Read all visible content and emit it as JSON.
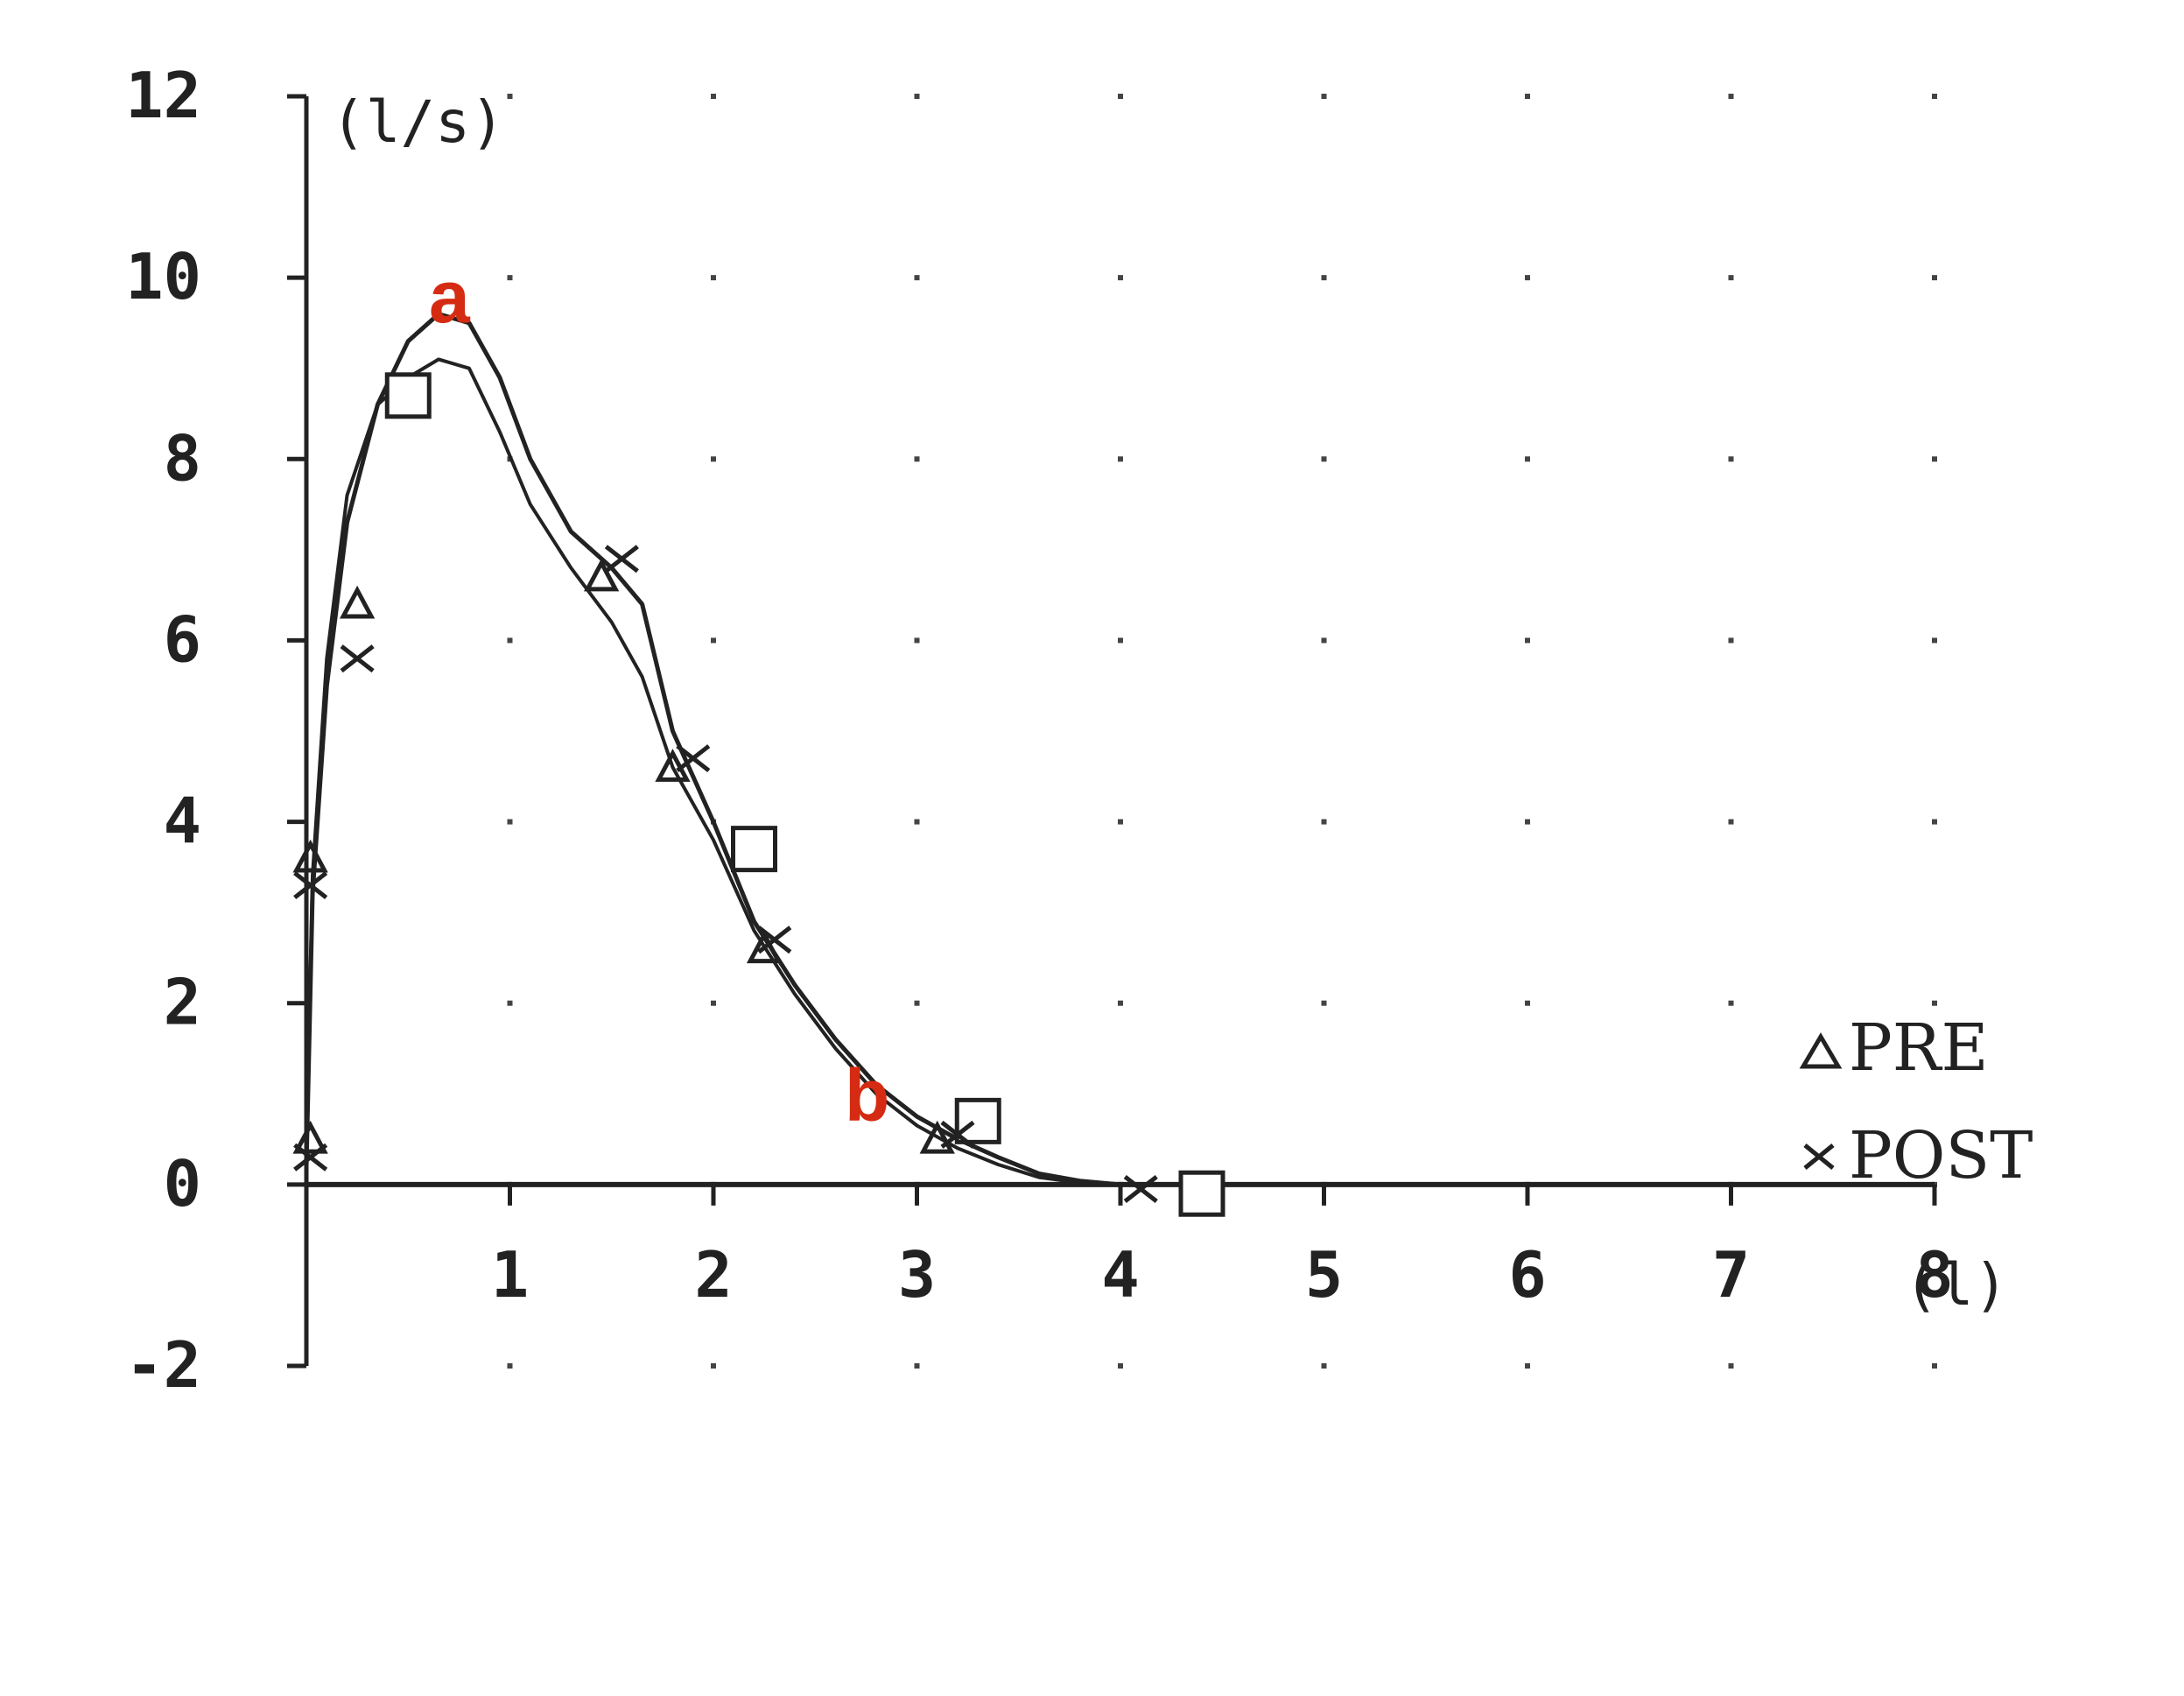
{
  "chart_data": {
    "type": "line",
    "title": "",
    "xlabel": "",
    "ylabel": "",
    "y_unit": "(l/s)",
    "x_unit": "(l)",
    "xlim": [
      0,
      8
    ],
    "ylim": [
      -2,
      12
    ],
    "x_ticks": [
      "1",
      "2",
      "3",
      "4",
      "5",
      "6",
      "7",
      "8"
    ],
    "y_ticks": [
      "12",
      "10",
      "8",
      "6",
      "4",
      "2",
      "0",
      "-2"
    ],
    "grid": "dotted",
    "legend_position": "right",
    "legend": [
      {
        "symbol": "triangle",
        "label": "PRE"
      },
      {
        "symbol": "cross",
        "label": "POST"
      }
    ],
    "series": [
      {
        "label": "POST",
        "points": [
          [
            0.0,
            0.2
          ],
          [
            0.03,
            3.2
          ],
          [
            0.1,
            5.5
          ],
          [
            0.2,
            7.3
          ],
          [
            0.35,
            8.6
          ],
          [
            0.5,
            9.3
          ],
          [
            0.65,
            9.6
          ],
          [
            0.8,
            9.5
          ],
          [
            0.95,
            8.9
          ],
          [
            1.1,
            8.0
          ],
          [
            1.3,
            7.2
          ],
          [
            1.5,
            6.8
          ],
          [
            1.65,
            6.4
          ],
          [
            1.8,
            5.0
          ],
          [
            2.0,
            4.0
          ],
          [
            2.2,
            2.9
          ],
          [
            2.4,
            2.2
          ],
          [
            2.6,
            1.6
          ],
          [
            2.8,
            1.1
          ],
          [
            3.0,
            0.75
          ],
          [
            3.2,
            0.5
          ],
          [
            3.4,
            0.3
          ],
          [
            3.6,
            0.12
          ],
          [
            3.8,
            0.04
          ],
          [
            4.0,
            0.0
          ]
        ]
      },
      {
        "label": "PRE",
        "points": [
          [
            0.0,
            0.2
          ],
          [
            0.03,
            3.4
          ],
          [
            0.1,
            5.8
          ],
          [
            0.2,
            7.6
          ],
          [
            0.35,
            8.6
          ],
          [
            0.5,
            8.9
          ],
          [
            0.65,
            9.1
          ],
          [
            0.8,
            9.0
          ],
          [
            0.95,
            8.3
          ],
          [
            1.1,
            7.5
          ],
          [
            1.3,
            6.8
          ],
          [
            1.5,
            6.2
          ],
          [
            1.65,
            5.6
          ],
          [
            1.8,
            4.6
          ],
          [
            2.0,
            3.8
          ],
          [
            2.2,
            2.8
          ],
          [
            2.4,
            2.1
          ],
          [
            2.6,
            1.5
          ],
          [
            2.8,
            1.0
          ],
          [
            3.0,
            0.65
          ],
          [
            3.2,
            0.4
          ],
          [
            3.4,
            0.22
          ],
          [
            3.6,
            0.08
          ],
          [
            3.8,
            0.02
          ],
          [
            4.0,
            0.0
          ]
        ]
      }
    ],
    "predicted_markers": [
      {
        "x": 0.5,
        "y": 8.7
      },
      {
        "x": 2.2,
        "y": 3.7
      },
      {
        "x": 3.3,
        "y": 0.7
      },
      {
        "x": 4.4,
        "y": -0.1
      }
    ],
    "pre_markers": [
      {
        "x": 0.02,
        "y": 3.6
      },
      {
        "x": 0.25,
        "y": 6.4
      },
      {
        "x": 1.45,
        "y": 6.7
      },
      {
        "x": 1.8,
        "y": 4.6
      },
      {
        "x": 2.25,
        "y": 2.6
      },
      {
        "x": 3.1,
        "y": 0.5
      },
      {
        "x": 0.02,
        "y": 0.5
      }
    ],
    "post_markers": [
      {
        "x": 0.02,
        "y": 3.3
      },
      {
        "x": 0.25,
        "y": 5.8
      },
      {
        "x": 1.55,
        "y": 6.9
      },
      {
        "x": 1.9,
        "y": 4.7
      },
      {
        "x": 2.3,
        "y": 2.7
      },
      {
        "x": 3.2,
        "y": 0.55
      },
      {
        "x": 0.02,
        "y": 0.3
      },
      {
        "x": 4.1,
        "y": -0.05
      }
    ],
    "annotations": [
      {
        "text": "a",
        "x": 0.72,
        "y": 10.1
      },
      {
        "text": "b",
        "x": 2.75,
        "y": 2.5
      }
    ]
  }
}
